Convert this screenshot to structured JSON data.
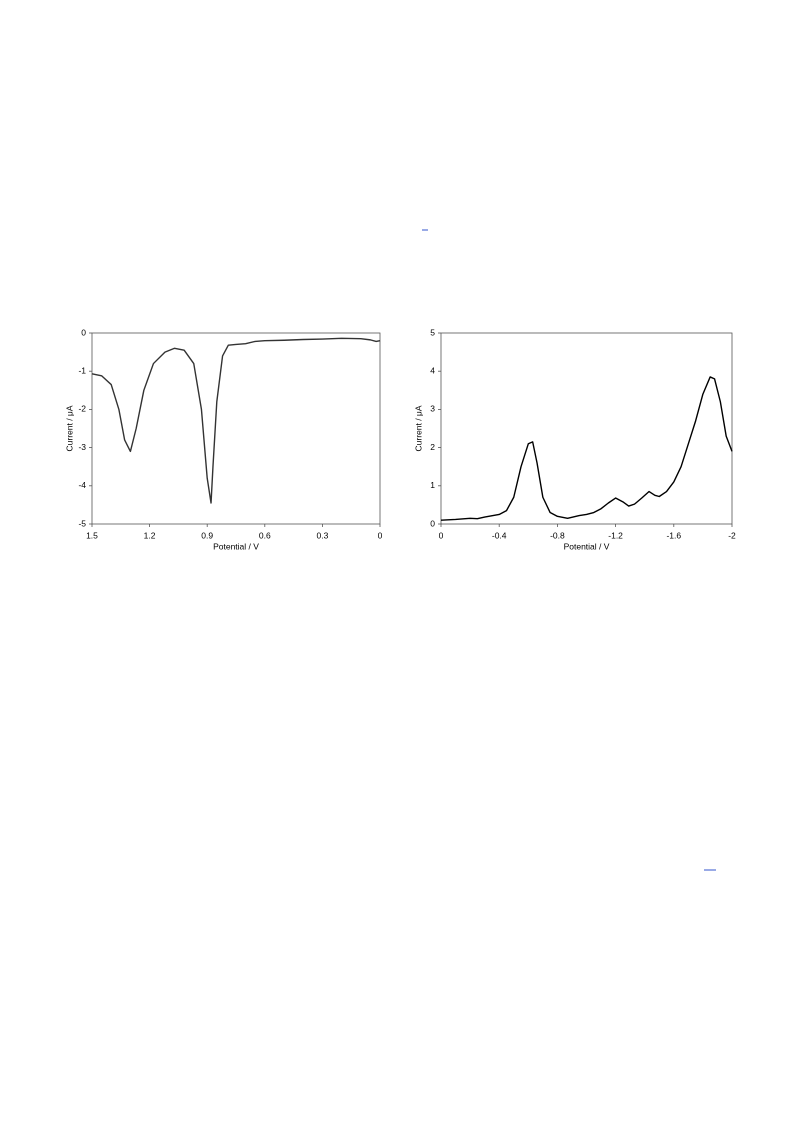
{
  "chart_data": [
    {
      "type": "line",
      "ylabel": "Current / μA",
      "xlabel": "Potential / V",
      "xlim": [
        1.5,
        0
      ],
      "xticks": [
        1.5,
        1.2,
        0.9,
        0.6,
        0.3,
        0
      ],
      "ylim": [
        -5,
        0
      ],
      "yticks": [
        0,
        -1,
        -2,
        -3,
        -4,
        -5
      ],
      "x": [
        1.5,
        1.45,
        1.4,
        1.36,
        1.33,
        1.3,
        1.27,
        1.23,
        1.18,
        1.12,
        1.07,
        1.02,
        0.97,
        0.93,
        0.9,
        0.88,
        0.87,
        0.85,
        0.82,
        0.79,
        0.75,
        0.7,
        0.65,
        0.6,
        0.5,
        0.4,
        0.3,
        0.2,
        0.1,
        0.05,
        0.02,
        0
      ],
      "series": [
        {
          "color": "#333333",
          "values": [
            -1.07,
            -1.12,
            -1.35,
            -2.0,
            -2.8,
            -3.1,
            -2.5,
            -1.5,
            -0.8,
            -0.5,
            -0.4,
            -0.45,
            -0.8,
            -2.0,
            -3.8,
            -4.45,
            -3.5,
            -1.8,
            -0.6,
            -0.32,
            -0.3,
            -0.28,
            -0.22,
            -0.2,
            -0.19,
            -0.17,
            -0.16,
            -0.14,
            -0.15,
            -0.18,
            -0.22,
            -0.2
          ]
        }
      ]
    },
    {
      "type": "line",
      "ylabel": "Current / μA",
      "xlabel": "Potential / V",
      "xlim": [
        0,
        -2
      ],
      "xticks": [
        0,
        -0.4,
        -0.8,
        -1.2,
        -1.6,
        -2
      ],
      "ylim": [
        0,
        5
      ],
      "yticks": [
        5,
        4,
        3,
        2,
        1,
        0
      ],
      "x": [
        0,
        -0.1,
        -0.2,
        -0.25,
        -0.3,
        -0.4,
        -0.45,
        -0.5,
        -0.55,
        -0.6,
        -0.63,
        -0.66,
        -0.7,
        -0.75,
        -0.8,
        -0.87,
        -0.95,
        -1.0,
        -1.05,
        -1.1,
        -1.15,
        -1.2,
        -1.25,
        -1.29,
        -1.33,
        -1.38,
        -1.43,
        -1.47,
        -1.5,
        -1.55,
        -1.6,
        -1.65,
        -1.7,
        -1.75,
        -1.8,
        -1.85,
        -1.88,
        -1.92,
        -1.96,
        -2.0
      ],
      "series": [
        {
          "color": "#000000",
          "values": [
            0.1,
            0.12,
            0.15,
            0.14,
            0.18,
            0.25,
            0.35,
            0.7,
            1.5,
            2.1,
            2.15,
            1.6,
            0.7,
            0.3,
            0.2,
            0.15,
            0.22,
            0.25,
            0.3,
            0.4,
            0.55,
            0.68,
            0.58,
            0.47,
            0.52,
            0.68,
            0.85,
            0.75,
            0.72,
            0.85,
            1.1,
            1.5,
            2.1,
            2.7,
            3.4,
            3.85,
            3.8,
            3.2,
            2.3,
            1.9
          ]
        }
      ]
    }
  ]
}
